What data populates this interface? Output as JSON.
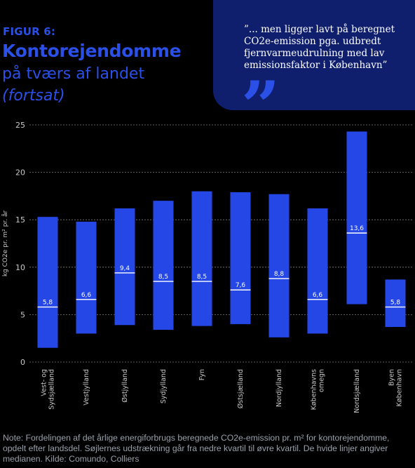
{
  "figure_label": "FIGUR 6:",
  "title_main": "Kontorejendomme",
  "title_sub": "på tværs af landet",
  "title_cont": "(fortsat)",
  "quote": "”... men ligger lavt på beregnet CO2e-emission pga. udbredt fjernvarmeudrulning med lav emissionsfaktor i København”",
  "quote_mark": "”",
  "colors": {
    "bar": "#2447e6",
    "median": "#ffffff",
    "axis_text": "#c8c8c8",
    "grid": "#7a7a7a"
  },
  "chart_data": {
    "type": "bar",
    "ylabel": "kg CO2e pr. m² pr. år",
    "ylim": [
      0,
      25
    ],
    "yticks": [
      0,
      5,
      10,
      15,
      20,
      25
    ],
    "grid": true,
    "categories": [
      "Vest- og Sydsjælland",
      "Vestjylland",
      "Østjylland",
      "Sydjylland",
      "Fyn",
      "Østsjælland",
      "Nordjylland",
      "Københavns omegn",
      "Nordsjælland",
      "Byen København"
    ],
    "category_lines": [
      [
        "Vest- og",
        "Sydsjælland"
      ],
      [
        "Vestjylland"
      ],
      [
        "Østjylland"
      ],
      [
        "Sydjylland"
      ],
      [
        "Fyn"
      ],
      [
        "Østsjælland"
      ],
      [
        "Nordjylland"
      ],
      [
        "Københavns",
        "omegn"
      ],
      [
        "Nordsjælland"
      ],
      [
        "Byen",
        "København"
      ]
    ],
    "series": [
      {
        "name": "lower_quartile",
        "values": [
          1.5,
          3.0,
          3.9,
          3.4,
          3.8,
          4.0,
          2.6,
          3.0,
          6.1,
          3.7
        ]
      },
      {
        "name": "upper_quartile",
        "values": [
          15.3,
          14.8,
          16.2,
          17.0,
          18.0,
          17.9,
          17.7,
          16.2,
          24.3,
          8.7
        ]
      },
      {
        "name": "median",
        "values": [
          5.8,
          6.6,
          9.4,
          8.5,
          8.5,
          7.6,
          8.8,
          6.6,
          13.6,
          5.8
        ]
      }
    ],
    "median_labels": [
      "5,8",
      "6,6",
      "9,4",
      "8,5",
      "8,5",
      "7,6",
      "8,8",
      "6,6",
      "13,6",
      "5,8"
    ]
  },
  "note": "Note: Fordelingen af det årlige energiforbrugs beregnede CO2e-emission pr. m² for kontorejendomme, opdelt efter landsdel. Søjlernes udstrækning går fra nedre kvartil til øvre kvartil. De hvide linjer angiver medianen. Kilde: Comundo, Colliers"
}
